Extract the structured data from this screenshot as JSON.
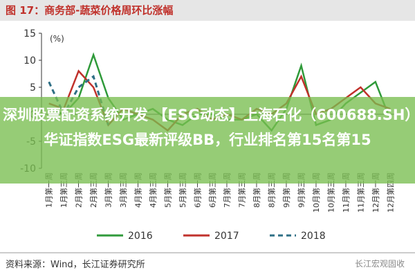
{
  "chart_data": {
    "type": "line",
    "title": "图 17：商务部-蔬菜价格周环比涨幅",
    "y_label": "(%)",
    "source": "资料来源：Wind，长江证券研究所",
    "watermark": "长江宏观固收",
    "banner": "深圳股票配资系统开发 【ESG动态】上海石化（600688.SH）华证指数ESG最新评级BB，行业排名第15名第15",
    "categories": [
      "1月第一周",
      "1月第三周",
      "2月第一周",
      "2月第三周",
      "3月第一周",
      "3月第三周",
      "4月第一周",
      "4月第三周",
      "5月第一周",
      "5月第三周",
      "6月第一周",
      "6月第三周",
      "7月第一周",
      "7月第三周",
      "8月第一周",
      "8月第三周",
      "9月第一周",
      "9月第三周",
      "10月第一周",
      "10月第三周",
      "11月第一周",
      "11月第三周",
      "12月第一周",
      "12月第四周"
    ],
    "series": [
      {
        "name": "2016",
        "color": "#2f9a3a",
        "dash": false,
        "values": [
          1,
          0,
          3,
          11,
          3,
          -1,
          0,
          1,
          -1,
          -2,
          0,
          0,
          -1,
          -1,
          0,
          -3,
          1,
          9,
          -2,
          -1,
          2,
          4,
          6,
          -1
        ]
      },
      {
        "name": "2017",
        "color": "#c0312b",
        "dash": false,
        "values": [
          2,
          1,
          8,
          5,
          -2,
          1,
          0,
          -1,
          -3,
          0,
          1,
          -1,
          0,
          -1,
          1,
          0,
          2,
          7,
          0,
          1,
          3,
          5,
          2,
          1
        ]
      },
      {
        "name": "2018",
        "color": "#2e6f85",
        "dash": true,
        "values": [
          6,
          0,
          5,
          7,
          -2,
          null,
          null,
          null,
          null,
          null,
          null,
          null,
          null,
          null,
          null,
          null,
          null,
          null,
          null,
          null,
          null,
          null,
          null,
          null
        ]
      }
    ],
    "ylim": [
      -10,
      15
    ],
    "yticks": [
      -10,
      -5,
      0,
      5,
      10,
      15
    ]
  }
}
